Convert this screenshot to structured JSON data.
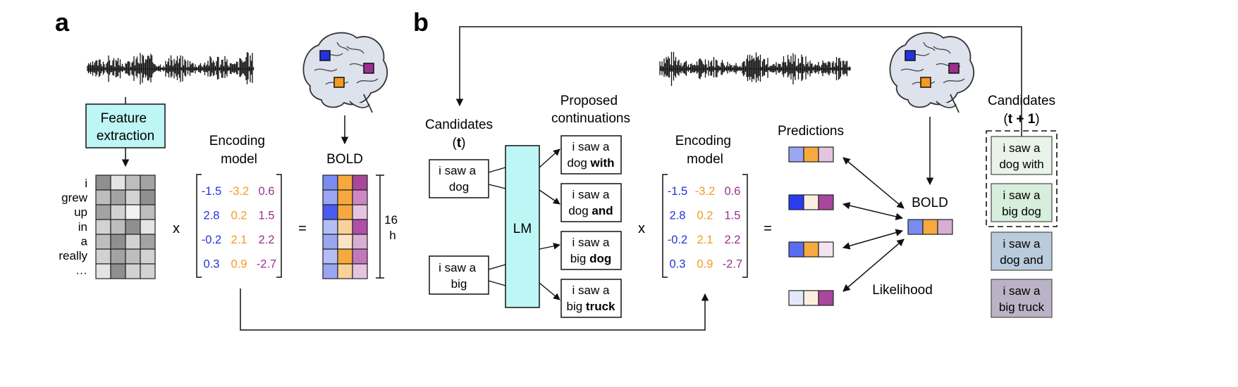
{
  "panel_a": {
    "label": "a",
    "feature_extraction": [
      "Feature",
      "extraction"
    ],
    "words": [
      "i",
      "grew",
      "up",
      "in",
      "a",
      "really",
      "…"
    ],
    "x_symbol": "x",
    "encoding_model_label": [
      "Encoding",
      "model"
    ],
    "weights": [
      [
        "-1.5",
        "-3.2",
        "0.6"
      ],
      [
        "2.8",
        "0.2",
        "1.5"
      ],
      [
        "-0.2",
        "2.1",
        "2.2"
      ],
      [
        "0.3",
        "0.9",
        "-2.7"
      ]
    ],
    "equals_symbol": "=",
    "bold_label": "BOLD",
    "duration": [
      "16",
      "h"
    ],
    "feature_grid": [
      [
        "#8f8f8f",
        "#e4e4e4",
        "#bdbdbd",
        "#a3a3a3"
      ],
      [
        "#bdbdbd",
        "#a3a3a3",
        "#d2d2d2",
        "#8f8f8f"
      ],
      [
        "#a3a3a3",
        "#d2d2d2",
        "#f2f2f2",
        "#bdbdbd"
      ],
      [
        "#d2d2d2",
        "#bdbdbd",
        "#8f8f8f",
        "#e4e4e4"
      ],
      [
        "#bdbdbd",
        "#8f8f8f",
        "#d2d2d2",
        "#a3a3a3"
      ],
      [
        "#d2d2d2",
        "#a3a3a3",
        "#bdbdbd",
        "#d2d2d2"
      ],
      [
        "#e4e4e4",
        "#8f8f8f",
        "#d2d2d2",
        "#d2d2d2"
      ]
    ],
    "bold_grid": [
      [
        "#7a8cf0",
        "#f5a93e",
        "#a8479c"
      ],
      [
        "#9aa6f2",
        "#f5a93e",
        "#cc88c4"
      ],
      [
        "#4a5cf0",
        "#f5a93e",
        "#e4c4e0"
      ],
      [
        "#b4bef5",
        "#f9d29a",
        "#b04ea8"
      ],
      [
        "#9aa6f2",
        "#fbe4c4",
        "#d8aed2"
      ],
      [
        "#b4bef5",
        "#f5a93e",
        "#c478bc"
      ],
      [
        "#9aa6f2",
        "#f9d29a",
        "#e4c4e0"
      ]
    ]
  },
  "panel_b": {
    "label": "b",
    "candidates_t_label": [
      "Candidates",
      "(",
      "t",
      ")"
    ],
    "candidates": [
      [
        "i saw a",
        "dog"
      ],
      [
        "i saw a",
        "big"
      ]
    ],
    "lm_label": "LM",
    "proposed_label": [
      "Proposed",
      "continuations"
    ],
    "continuations": [
      {
        "line1": "i saw a",
        "plain": "dog ",
        "bold": "with"
      },
      {
        "line1": "i saw a",
        "plain": "dog ",
        "bold": "and"
      },
      {
        "line1": "i saw a",
        "plain": "big ",
        "bold": "dog"
      },
      {
        "line1": "i saw a",
        "plain": "big ",
        "bold": "truck"
      }
    ],
    "x_symbol": "x",
    "encoding_model_label": [
      "Encoding",
      "model"
    ],
    "weights": [
      [
        "-1.5",
        "-3.2",
        "0.6"
      ],
      [
        "2.8",
        "0.2",
        "1.5"
      ],
      [
        "-0.2",
        "2.1",
        "2.2"
      ],
      [
        "0.3",
        "0.9",
        "-2.7"
      ]
    ],
    "equals_symbol": "=",
    "predictions_label": "Predictions",
    "predictions": [
      [
        "#9aa6f2",
        "#f5a93e",
        "#e4c4e0"
      ],
      [
        "#2a3cf0",
        "#fbf0e0",
        "#a8479c"
      ],
      [
        "#5a6cf0",
        "#f5a93e",
        "#f2e4f0"
      ],
      [
        "#e4e8fb",
        "#fbf0e0",
        "#a8479c"
      ]
    ],
    "bold_label": "BOLD",
    "bold_row": [
      "#7a8cf0",
      "#f5a93e",
      "#d8aed2"
    ],
    "likelihood_label": "Likelihood",
    "candidates_next_label": [
      "Candidates",
      "(",
      "t + 1",
      ")"
    ],
    "next_candidates": [
      {
        "lines": [
          "i saw a",
          "dog with"
        ],
        "fill": "#e9f3e9"
      },
      {
        "lines": [
          "i saw a",
          "big dog"
        ],
        "fill": "#d6eedb"
      },
      {
        "lines": [
          "i saw a",
          "dog and"
        ],
        "fill": "#b9cbdc"
      },
      {
        "lines": [
          "i saw a",
          "big truck"
        ],
        "fill": "#bab3c6"
      }
    ]
  },
  "colors": {
    "blue": "#2233dd",
    "orange": "#f39a1f",
    "purple": "#9b2f8e",
    "cyan_box": "#bdf6f4",
    "line": "#111111"
  },
  "icons": [
    "waveform-icon",
    "brain-icon"
  ]
}
